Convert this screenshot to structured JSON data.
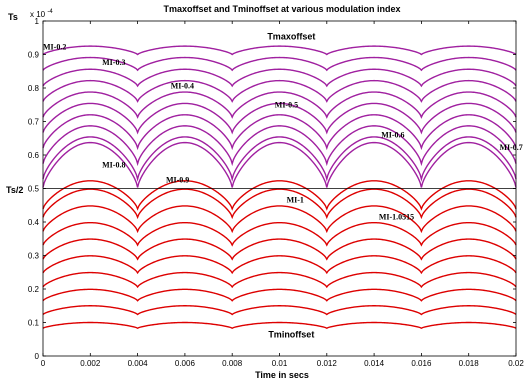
{
  "chart_data": {
    "type": "line",
    "title": "Tmaxoffset and Tminoffset at various modulation index",
    "xlabel": "Time in secs",
    "ylabel": "",
    "xlim": [
      0,
      0.02
    ],
    "ylim": [
      0,
      1
    ],
    "y_multiplier": "x 10^-4",
    "y_multiplier_base": "x 10",
    "y_multiplier_exp": "-4",
    "y_top_label": "Ts",
    "y_mid_label": "Ts/2",
    "y_mid_value": 0.5,
    "x_ticks": [
      "0",
      "0.002",
      "0.004",
      "0.006",
      "0.008",
      "0.01",
      "0.012",
      "0.014",
      "0.016",
      "0.018",
      "0.02"
    ],
    "y_ticks": [
      "0",
      "0.1",
      "0.2",
      "0.3",
      "0.4",
      "0.5",
      "0.6",
      "0.7",
      "0.8",
      "0.9",
      "1"
    ],
    "group_labels": {
      "max": "Tmaxoffset",
      "min": "Tminoffset"
    },
    "colors": {
      "max": "#a020a0",
      "min": "#dd0000",
      "midline": "#000000"
    },
    "modulation_indices": [
      "MI-0.2",
      "MI-0.3",
      "MI-0.4",
      "MI-0.5",
      "MI-0.6",
      "MI-0.7",
      "MI-0.8",
      "MI-0.9",
      "MI-1",
      "MI-1.0515"
    ],
    "mi_values": [
      0.2,
      0.3,
      0.4,
      0.5,
      0.6,
      0.7,
      0.8,
      0.9,
      1.0,
      1.0515
    ],
    "label_anchors": [
      {
        "text": "MI-0.2",
        "x": 0.0,
        "y": 0.915
      },
      {
        "text": "MI-0.3",
        "x": 0.0025,
        "y": 0.868
      },
      {
        "text": "MI-0.4",
        "x": 0.0054,
        "y": 0.798
      },
      {
        "text": "MI-0.5",
        "x": 0.0098,
        "y": 0.742
      },
      {
        "text": "MI-0.6",
        "x": 0.0143,
        "y": 0.652
      },
      {
        "text": "MI-0.7",
        "x": 0.0193,
        "y": 0.615
      },
      {
        "text": "MI-0.8",
        "x": 0.0025,
        "y": 0.563
      },
      {
        "text": "MI-0.9",
        "x": 0.0052,
        "y": 0.518
      },
      {
        "text": "MI-1",
        "x": 0.0103,
        "y": 0.458
      },
      {
        "text": "MI-1.0515",
        "x": 0.0142,
        "y": 0.408
      }
    ],
    "group_label_anchors": {
      "max": {
        "x": 0.0105,
        "y": 0.945
      },
      "min": {
        "x": 0.0105,
        "y": 0.055
      }
    },
    "period": 0.004,
    "peak_times": [
      0.002,
      0.006,
      0.01,
      0.014,
      0.018
    ],
    "valley_times": [
      0,
      0.004,
      0.008,
      0.012,
      0.016,
      0.02
    ],
    "tmaxoffset_base_at_valley": [
      0.9,
      0.853,
      0.806,
      0.76,
      0.713,
      0.667,
      0.621,
      0.574,
      0.528,
      0.503
    ],
    "tmaxoffset_peak": [
      0.925,
      0.891,
      0.856,
      0.822,
      0.788,
      0.754,
      0.72,
      0.687,
      0.654,
      0.637
    ],
    "tminoffset_at_valley": [
      0.083,
      0.124,
      0.165,
      0.206,
      0.248,
      0.289,
      0.331,
      0.372,
      0.414,
      0.439
    ],
    "tminoffset_peak": [
      0.1,
      0.15,
      0.199,
      0.249,
      0.299,
      0.349,
      0.398,
      0.448,
      0.498,
      0.523
    ]
  }
}
